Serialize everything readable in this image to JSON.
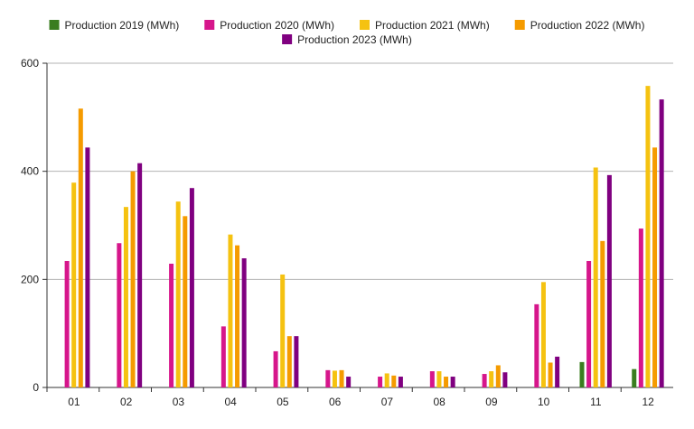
{
  "chart_data": {
    "type": "bar",
    "categories": [
      "01",
      "02",
      "03",
      "04",
      "05",
      "06",
      "07",
      "08",
      "09",
      "10",
      "11",
      "12"
    ],
    "series": [
      {
        "name": "Production 2019 (MWh)",
        "color": "#3a7d1f",
        "values": [
          0,
          0,
          0,
          0,
          0,
          0,
          0,
          0,
          0,
          0,
          47,
          34
        ]
      },
      {
        "name": "Production 2020 (MWh)",
        "color": "#d6168b",
        "values": [
          234,
          267,
          229,
          113,
          67,
          32,
          20,
          30,
          25,
          154,
          234,
          294
        ]
      },
      {
        "name": "Production 2021 (MWh)",
        "color": "#f5c211",
        "values": [
          379,
          334,
          344,
          283,
          209,
          31,
          26,
          30,
          30,
          195,
          407,
          558
        ]
      },
      {
        "name": "Production 2022 (MWh)",
        "color": "#f59b00",
        "values": [
          516,
          400,
          317,
          263,
          95,
          32,
          22,
          20,
          41,
          46,
          271,
          444
        ]
      },
      {
        "name": "Production 2023 (MWh)",
        "color": "#800080",
        "values": [
          444,
          415,
          369,
          239,
          95,
          20,
          20,
          20,
          28,
          57,
          393,
          533
        ]
      }
    ],
    "ylim": [
      0,
      600
    ],
    "yticks": [
      "0",
      "200",
      "400",
      "600"
    ],
    "grid": true,
    "legend_position": "top"
  }
}
